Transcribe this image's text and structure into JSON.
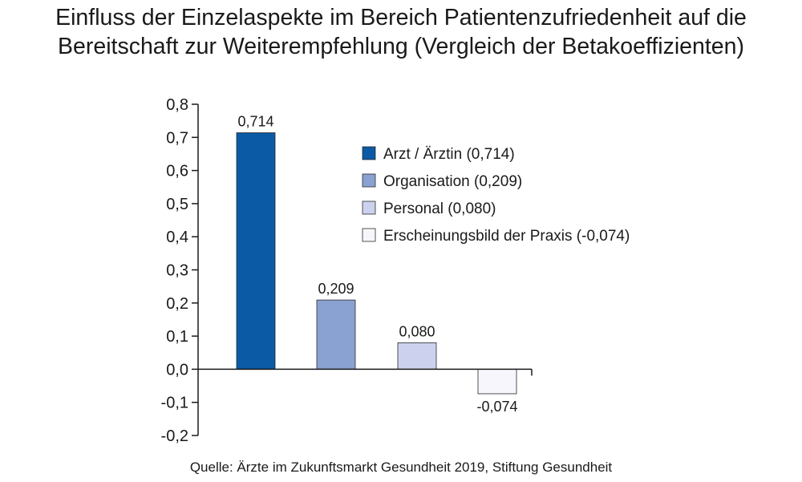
{
  "title_line1": "Einfluss der Einzelaspekte im Bereich Patientenzufriedenheit auf die",
  "title_line2": "Bereitschaft zur Weiterempfehlung (Vergleich der Betakoeffizienten)",
  "source": "Quelle: Ärzte im Zukunftsmarkt Gesundheit 2019, Stiftung Gesundheit",
  "chart_data": {
    "type": "bar",
    "title": "Einfluss der Einzelaspekte im Bereich Patientenzufriedenheit auf die Bereitschaft zur Weiterempfehlung (Vergleich der Betakoeffizienten)",
    "categories": [
      "Arzt / Ärztin",
      "Organisation",
      "Personal",
      "Erscheinungsbild der Praxis"
    ],
    "values": [
      0.714,
      0.209,
      0.08,
      -0.074
    ],
    "data_labels": [
      "0,714",
      "0,209",
      "0,080",
      "-0,074"
    ],
    "colors": [
      "#0b5aa6",
      "#8aa2d2",
      "#ccd2ee",
      "#f6f6fc"
    ],
    "legend": [
      "Arzt / Ärztin (0,714)",
      "Organisation (0,209)",
      "Personal (0,080)",
      "Erscheinungsbild der Praxis (-0,074)"
    ],
    "legend_placement": "top-right",
    "ylim": [
      -0.2,
      0.8
    ],
    "yticks": [
      0.8,
      0.7,
      0.6,
      0.5,
      0.4,
      0.3,
      0.2,
      0.1,
      0.0,
      -0.1,
      -0.2
    ],
    "ytick_labels": [
      "0,8",
      "0,7",
      "0,6",
      "0,5",
      "0,4",
      "0,3",
      "0,2",
      "0,1",
      "0,0",
      "-0,1",
      "-0,2"
    ],
    "xlabel": "",
    "ylabel": "",
    "grid": false
  }
}
